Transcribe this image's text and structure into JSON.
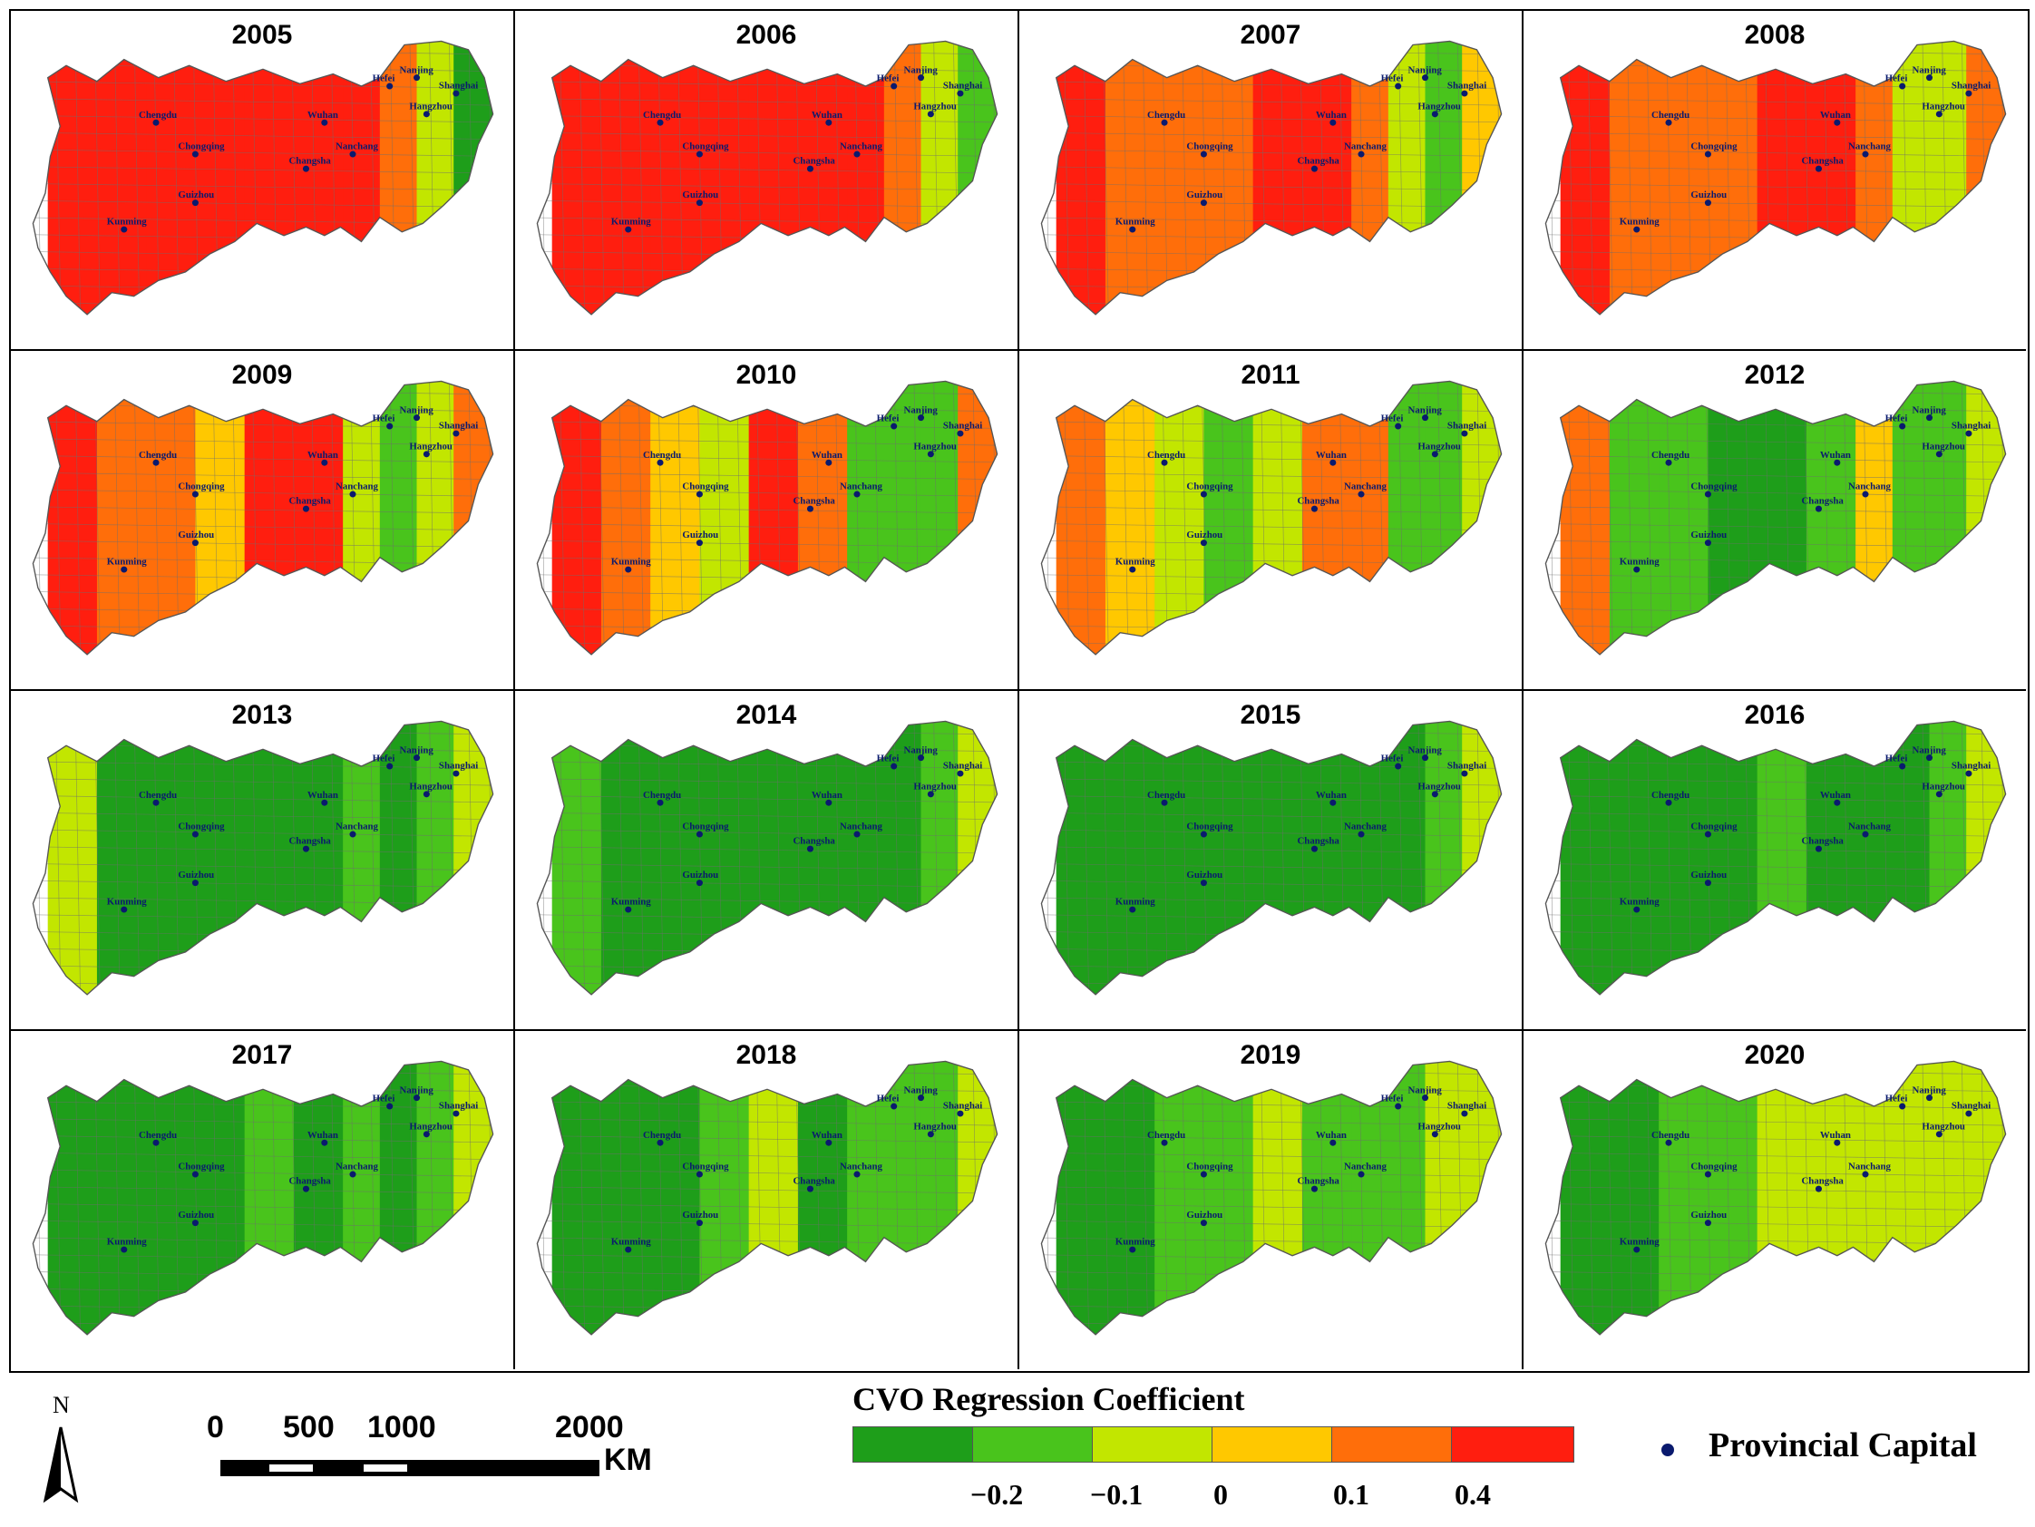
{
  "colors": {
    "c1": "#1e9e1a",
    "c2": "#49c41c",
    "c3": "#c2e600",
    "c4": "#ffc800",
    "c5": "#ff6e0a",
    "c6": "#ff1e0f",
    "capital": "#0a1a6e",
    "border": "#6e6e6e"
  },
  "panels": [
    {
      "year": "2005"
    },
    {
      "year": "2006"
    },
    {
      "year": "2007"
    },
    {
      "year": "2008"
    },
    {
      "year": "2009"
    },
    {
      "year": "2010"
    },
    {
      "year": "2011"
    },
    {
      "year": "2012"
    },
    {
      "year": "2013"
    },
    {
      "year": "2014"
    },
    {
      "year": "2015"
    },
    {
      "year": "2016"
    },
    {
      "year": "2017"
    },
    {
      "year": "2018"
    },
    {
      "year": "2019"
    },
    {
      "year": "2020"
    }
  ],
  "cities": [
    "Chengdu",
    "Chongqing",
    "Guizhou",
    "Kunming",
    "Wuhan",
    "Changsha",
    "Nanchang",
    "Hefei",
    "Nanjing",
    "Shanghai",
    "Hangzhou"
  ],
  "scale_bar": {
    "labels": [
      "0",
      "500",
      "1000",
      "2000"
    ],
    "unit": "KM"
  },
  "north_label": "N",
  "legend": {
    "title": "CVO Regression Coefficient",
    "ticks": [
      "−0.2",
      "−0.1",
      "0",
      "0.1",
      "0.4"
    ],
    "capital_label": "Provincial Capital"
  },
  "heat": [
    [
      6,
      6,
      6,
      6,
      6,
      6,
      6,
      5,
      3,
      1
    ],
    [
      6,
      6,
      6,
      6,
      6,
      6,
      6,
      5,
      3,
      2
    ],
    [
      6,
      5,
      5,
      5,
      6,
      6,
      5,
      3,
      2,
      4
    ],
    [
      6,
      5,
      5,
      5,
      6,
      6,
      5,
      3,
      3,
      5
    ],
    [
      6,
      5,
      5,
      4,
      6,
      6,
      3,
      2,
      3,
      5
    ],
    [
      6,
      5,
      4,
      3,
      6,
      5,
      2,
      2,
      2,
      5
    ],
    [
      5,
      4,
      3,
      2,
      3,
      5,
      5,
      2,
      2,
      3
    ],
    [
      5,
      2,
      2,
      1,
      1,
      2,
      4,
      2,
      2,
      3
    ],
    [
      3,
      1,
      1,
      1,
      1,
      1,
      2,
      1,
      2,
      3
    ],
    [
      2,
      1,
      1,
      1,
      1,
      1,
      1,
      1,
      2,
      3
    ],
    [
      1,
      1,
      1,
      1,
      1,
      1,
      1,
      1,
      2,
      3
    ],
    [
      1,
      1,
      1,
      1,
      2,
      1,
      1,
      1,
      2,
      3
    ],
    [
      1,
      1,
      1,
      1,
      2,
      1,
      2,
      1,
      2,
      3
    ],
    [
      1,
      1,
      1,
      2,
      3,
      1,
      2,
      2,
      2,
      3
    ],
    [
      1,
      1,
      2,
      2,
      3,
      2,
      2,
      2,
      3,
      3
    ],
    [
      1,
      1,
      2,
      2,
      3,
      3,
      3,
      3,
      3,
      3
    ]
  ]
}
